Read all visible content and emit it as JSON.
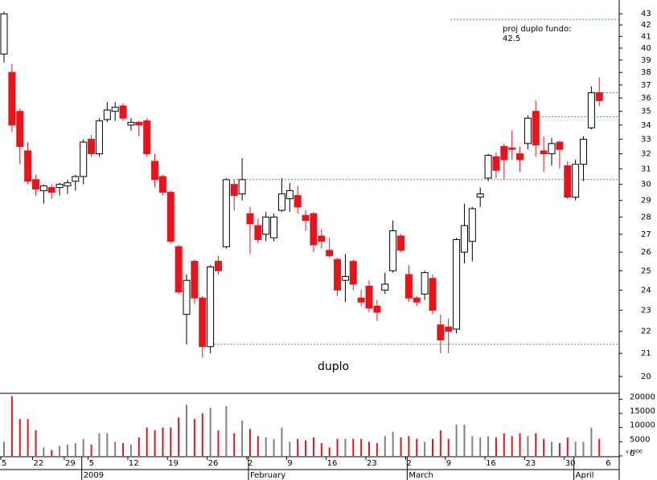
{
  "chart_data": {
    "type": "candlestick",
    "log_scale": true,
    "ylim": [
      19.3,
      43.9
    ],
    "yticks": [
      20,
      21,
      22,
      23,
      24,
      25,
      26,
      27,
      28,
      29,
      30,
      31,
      32,
      33,
      34,
      35,
      36,
      37,
      38,
      39,
      40,
      41,
      42,
      43
    ],
    "up_color": "#ffffff",
    "down_color": "#e8141c",
    "categories": [
      "5",
      null,
      null,
      null,
      "22",
      null,
      null,
      null,
      "29",
      null,
      null,
      "5",
      null,
      null,
      null,
      null,
      "12",
      null,
      null,
      null,
      null,
      "19",
      null,
      null,
      null,
      null,
      "26",
      null,
      null,
      null,
      null,
      "2",
      null,
      null,
      null,
      null,
      "9",
      null,
      null,
      null,
      null,
      "16",
      null,
      null,
      null,
      null,
      "23",
      null,
      null,
      null,
      null,
      "2",
      null,
      null,
      null,
      null,
      "9",
      null,
      null,
      null,
      null,
      "16",
      null,
      null,
      null,
      null,
      "23",
      null,
      null,
      null,
      null,
      "30",
      null,
      null,
      null,
      null
    ],
    "extra_tick": "6",
    "month_categories": [
      null,
      null,
      null,
      null,
      null,
      null,
      null,
      null,
      null,
      null,
      "2009",
      null,
      null,
      null,
      null,
      null,
      null,
      null,
      null,
      null,
      null,
      null,
      null,
      null,
      null,
      null,
      null,
      null,
      null,
      null,
      null,
      "February",
      null,
      null,
      null,
      null,
      null,
      null,
      null,
      null,
      null,
      null,
      null,
      null,
      null,
      null,
      null,
      null,
      null,
      null,
      null,
      "March",
      null,
      null,
      null,
      null,
      null,
      null,
      null,
      null,
      null,
      null,
      null,
      null,
      null,
      null,
      null,
      null,
      null,
      null,
      null,
      null,
      "April",
      null,
      null
    ],
    "open": [
      39.5,
      38,
      35,
      32.2,
      30.3,
      29.6,
      29.8,
      29.8,
      29.9,
      30.2,
      30.5,
      33,
      32,
      34.4,
      35,
      35.4,
      34,
      34.2,
      34.3,
      31.5,
      30.5,
      29.5,
      26.3,
      22.8,
      25.5,
      23.6,
      21.3,
      25.5,
      26.3,
      30,
      29.4,
      28.2,
      27.5,
      27,
      26.8,
      28.4,
      29.1,
      29.3,
      28.1,
      28.2,
      26.9,
      26.1,
      25.6,
      24.5,
      25.5,
      23.6,
      24.2,
      23.2,
      24,
      25,
      26.9,
      24.8,
      23.6,
      23.8,
      24.6,
      22.3,
      22.2,
      22.1,
      26,
      26.6,
      29.2,
      30.4,
      31.8,
      32.5,
      32.4,
      32,
      32.7,
      35,
      32.2,
      32,
      32.8,
      31.2,
      29.2,
      31.3,
      33.8,
      36.4
    ],
    "high": [
      43.2,
      38.7,
      35.2,
      32.8,
      30.6,
      30,
      30,
      30.1,
      30.3,
      30.6,
      33,
      33.3,
      34.5,
      35.7,
      35.7,
      35.6,
      34.5,
      34.3,
      34.5,
      32,
      30.6,
      29.6,
      26.4,
      24.8,
      25.6,
      23.7,
      25.3,
      25.8,
      30.4,
      30.3,
      31.7,
      28.6,
      27.9,
      28.3,
      28.2,
      30.4,
      30.1,
      29.9,
      28.4,
      28.3,
      27.3,
      26.8,
      25.7,
      25.9,
      25.6,
      24,
      24.5,
      23.5,
      24.9,
      27.8,
      27,
      25.3,
      23.7,
      25,
      24.8,
      22.8,
      22.6,
      26.8,
      28.8,
      28.6,
      29.8,
      32,
      32.1,
      32.7,
      33.6,
      32.5,
      34.7,
      35.8,
      33.2,
      33.1,
      32.9,
      31.5,
      31.6,
      33.2,
      36.9,
      37.6
    ],
    "low": [
      38.8,
      33.5,
      31.3,
      30,
      29.3,
      28.8,
      29.1,
      29.3,
      29.4,
      29.6,
      30,
      31.8,
      31.8,
      34.2,
      34.3,
      34.3,
      33.6,
      33.2,
      31.8,
      29.8,
      29.3,
      26.5,
      23.8,
      21.4,
      23.3,
      20.8,
      21,
      24.8,
      26.2,
      28.4,
      29,
      25.9,
      26.5,
      26.6,
      26.6,
      28.3,
      28.3,
      28.2,
      27.2,
      26,
      26.2,
      25.7,
      23.7,
      23.4,
      24,
      23.2,
      22.9,
      22.5,
      23.8,
      24.9,
      26,
      23.4,
      23.2,
      23.5,
      22.8,
      21,
      21,
      21.9,
      25.4,
      25.5,
      28.6,
      30.2,
      30.4,
      30.3,
      31.6,
      30.8,
      32.3,
      31.8,
      30.8,
      31.2,
      31,
      29.1,
      29,
      30.2,
      33.7,
      35.4
    ],
    "close": [
      43,
      34,
      32.5,
      30.2,
      29.7,
      29.9,
      29.5,
      30,
      30.1,
      30.5,
      32.8,
      32,
      34.3,
      35.1,
      35.3,
      34.5,
      34.2,
      34,
      32,
      30.3,
      29.5,
      26.6,
      23.9,
      24.5,
      23.6,
      21.3,
      25.2,
      25,
      30.3,
      29.3,
      30.3,
      27.6,
      26.7,
      28,
      28,
      29.4,
      29.6,
      28.6,
      27.8,
      26.4,
      26.6,
      25.8,
      24,
      24.7,
      24.3,
      23.4,
      23.1,
      22.9,
      24.3,
      27.2,
      26.1,
      23.6,
      23.4,
      24.9,
      23,
      21.6,
      22,
      26.7,
      27.5,
      28.5,
      29.4,
      31.9,
      30.9,
      31.6,
      32.3,
      31.6,
      34.5,
      32.6,
      32,
      32.7,
      32.3,
      29.2,
      31.3,
      33,
      36.4,
      35.8
    ],
    "volume": [
      5000,
      21000,
      13000,
      13000,
      9000,
      3000,
      2000,
      3500,
      4000,
      4500,
      6000,
      4000,
      8000,
      8000,
      5000,
      4500,
      4000,
      6500,
      10000,
      9000,
      10000,
      10000,
      13500,
      18000,
      13000,
      15000,
      17000,
      9000,
      17500,
      8000,
      12500,
      9500,
      7000,
      6500,
      6000,
      10000,
      5000,
      6000,
      5500,
      6500,
      4500,
      3000,
      6000,
      6000,
      6000,
      6000,
      5000,
      4500,
      7000,
      8500,
      6500,
      7000,
      6000,
      5000,
      6000,
      9000,
      6000,
      11000,
      11000,
      7000,
      6500,
      7000,
      6500,
      8000,
      7000,
      8000,
      7000,
      8000,
      6000,
      5000,
      4500,
      6500,
      5000,
      5000,
      10000,
      6000
    ],
    "volume_up_color": "#808080",
    "volume_down_color": "#e8141c",
    "volume_ylim": [
      0,
      21500
    ],
    "volume_yticks": [
      0,
      5000,
      10000,
      15000,
      20000
    ],
    "volume_note": "x 1000",
    "hlines": [
      {
        "value": 42.5,
        "color": "#2e9a5a"
      },
      {
        "value": 36.4,
        "color": "#5a86a8"
      },
      {
        "value": 34.6,
        "color": "#5a86a8"
      },
      {
        "value": 30.3,
        "color": "#5a86a8"
      },
      {
        "value": 21.4,
        "color": "#5a86a8"
      }
    ],
    "annotations": [
      {
        "text": "proj duplo fundo:",
        "color": "#2e9a5a"
      },
      {
        "text": "42.5",
        "color": "#2e9a5a"
      },
      {
        "text": "duplo",
        "color": "#808080"
      }
    ]
  }
}
